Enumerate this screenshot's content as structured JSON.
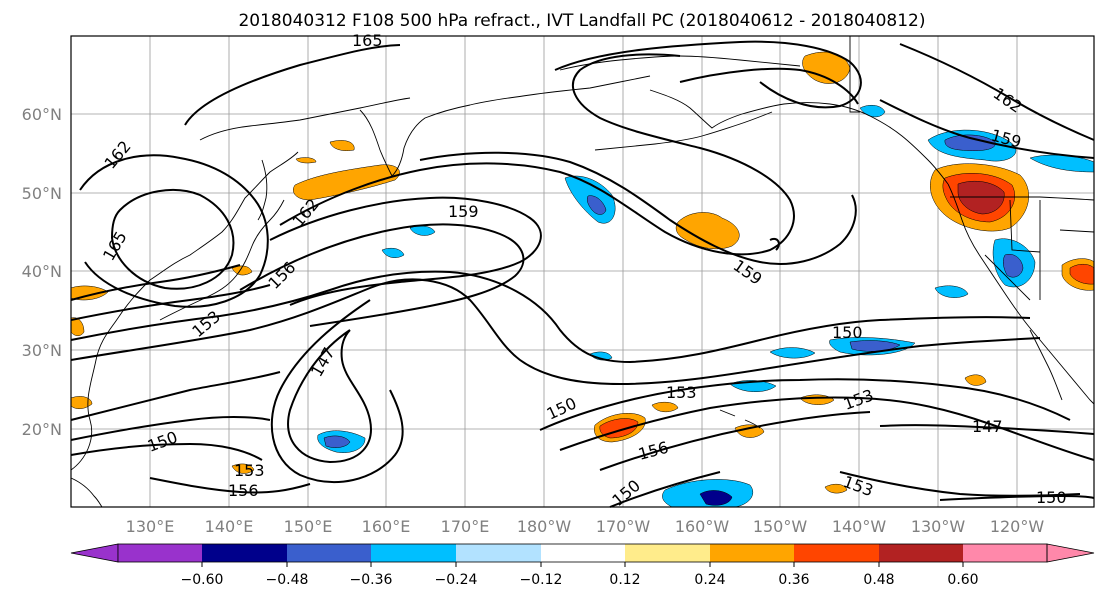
{
  "title": "2018040312 F108 500 hPa refract., IVT Landfall PC (2018040612 - 2018040812)",
  "lat_labels": [
    "20°N",
    "30°N",
    "40°N",
    "50°N",
    "60°N"
  ],
  "lon_labels": [
    "130°E",
    "140°E",
    "150°E",
    "160°E",
    "170°E",
    "180°W",
    "170°W",
    "160°W",
    "150°W",
    "140°W",
    "130°W",
    "120°W"
  ],
  "contour_labels": [
    "147",
    "147",
    "150",
    "150",
    "150",
    "150",
    "150",
    "153",
    "153",
    "153",
    "153",
    "153",
    "156",
    "156",
    "156",
    "159",
    "159",
    "159",
    "162",
    "162",
    "162",
    "165",
    "165"
  ],
  "colorbar": {
    "ticks": [
      "−0.60",
      "−0.48",
      "−0.36",
      "−0.24",
      "−0.12",
      "0.12",
      "0.24",
      "0.36",
      "0.48",
      "0.60"
    ],
    "colors": [
      "#9932cc",
      "#00008b",
      "#3a5fcd",
      "#00bfff",
      "#b2e2ff",
      "#ffffff",
      "#ffec8b",
      "#ffa500",
      "#ff4500",
      "#b22222",
      "#ff88aa"
    ]
  }
}
